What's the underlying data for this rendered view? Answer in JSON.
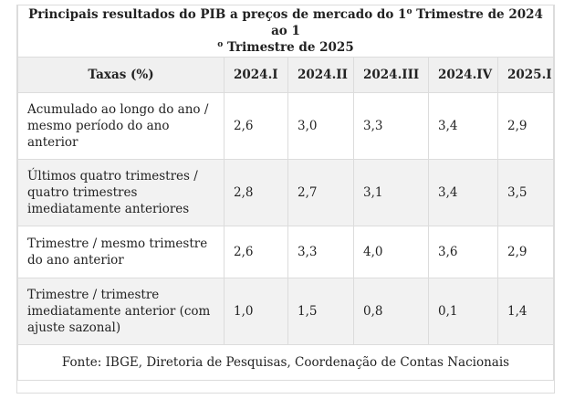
{
  "title_part1": "Principais resultados do PIB a preços de mercado do 1",
  "title_sup1": "o",
  "title_part2": " Trimestre de 2024 ao 1",
  "title_sup2": "o",
  "title_part3": " Trimestre de 2025",
  "columns": [
    "Taxas (%)",
    "2024.I",
    "2024.II",
    "2024.III",
    "2024.IV",
    "2025.I"
  ],
  "rows": [
    {
      "label": "Acumulado ao longo do ano / mesmo período do ano anterior",
      "values": [
        "2,6",
        "3,0",
        "3,3",
        "3,4",
        "2,9"
      ]
    },
    {
      "label": "Últimos quatro trimestres / quatro trimestres imediatamente anteriores",
      "values": [
        "2,8",
        "2,7",
        "3,1",
        "3,4",
        "3,5"
      ]
    },
    {
      "label": "Trimestre / mesmo trimestre do ano anterior",
      "values": [
        "2,6",
        "3,3",
        "4,0",
        "3,6",
        "2,9"
      ]
    },
    {
      "label": "Trimestre / trimestre imediatamente anterior (com ajuste sazonal)",
      "values": [
        "1,0",
        "1,5",
        "0,8",
        "0,1",
        "1,4"
      ]
    }
  ],
  "source": "Fonte: IBGE, Diretoria de Pesquisas, Coordenação de Contas Nacionais"
}
